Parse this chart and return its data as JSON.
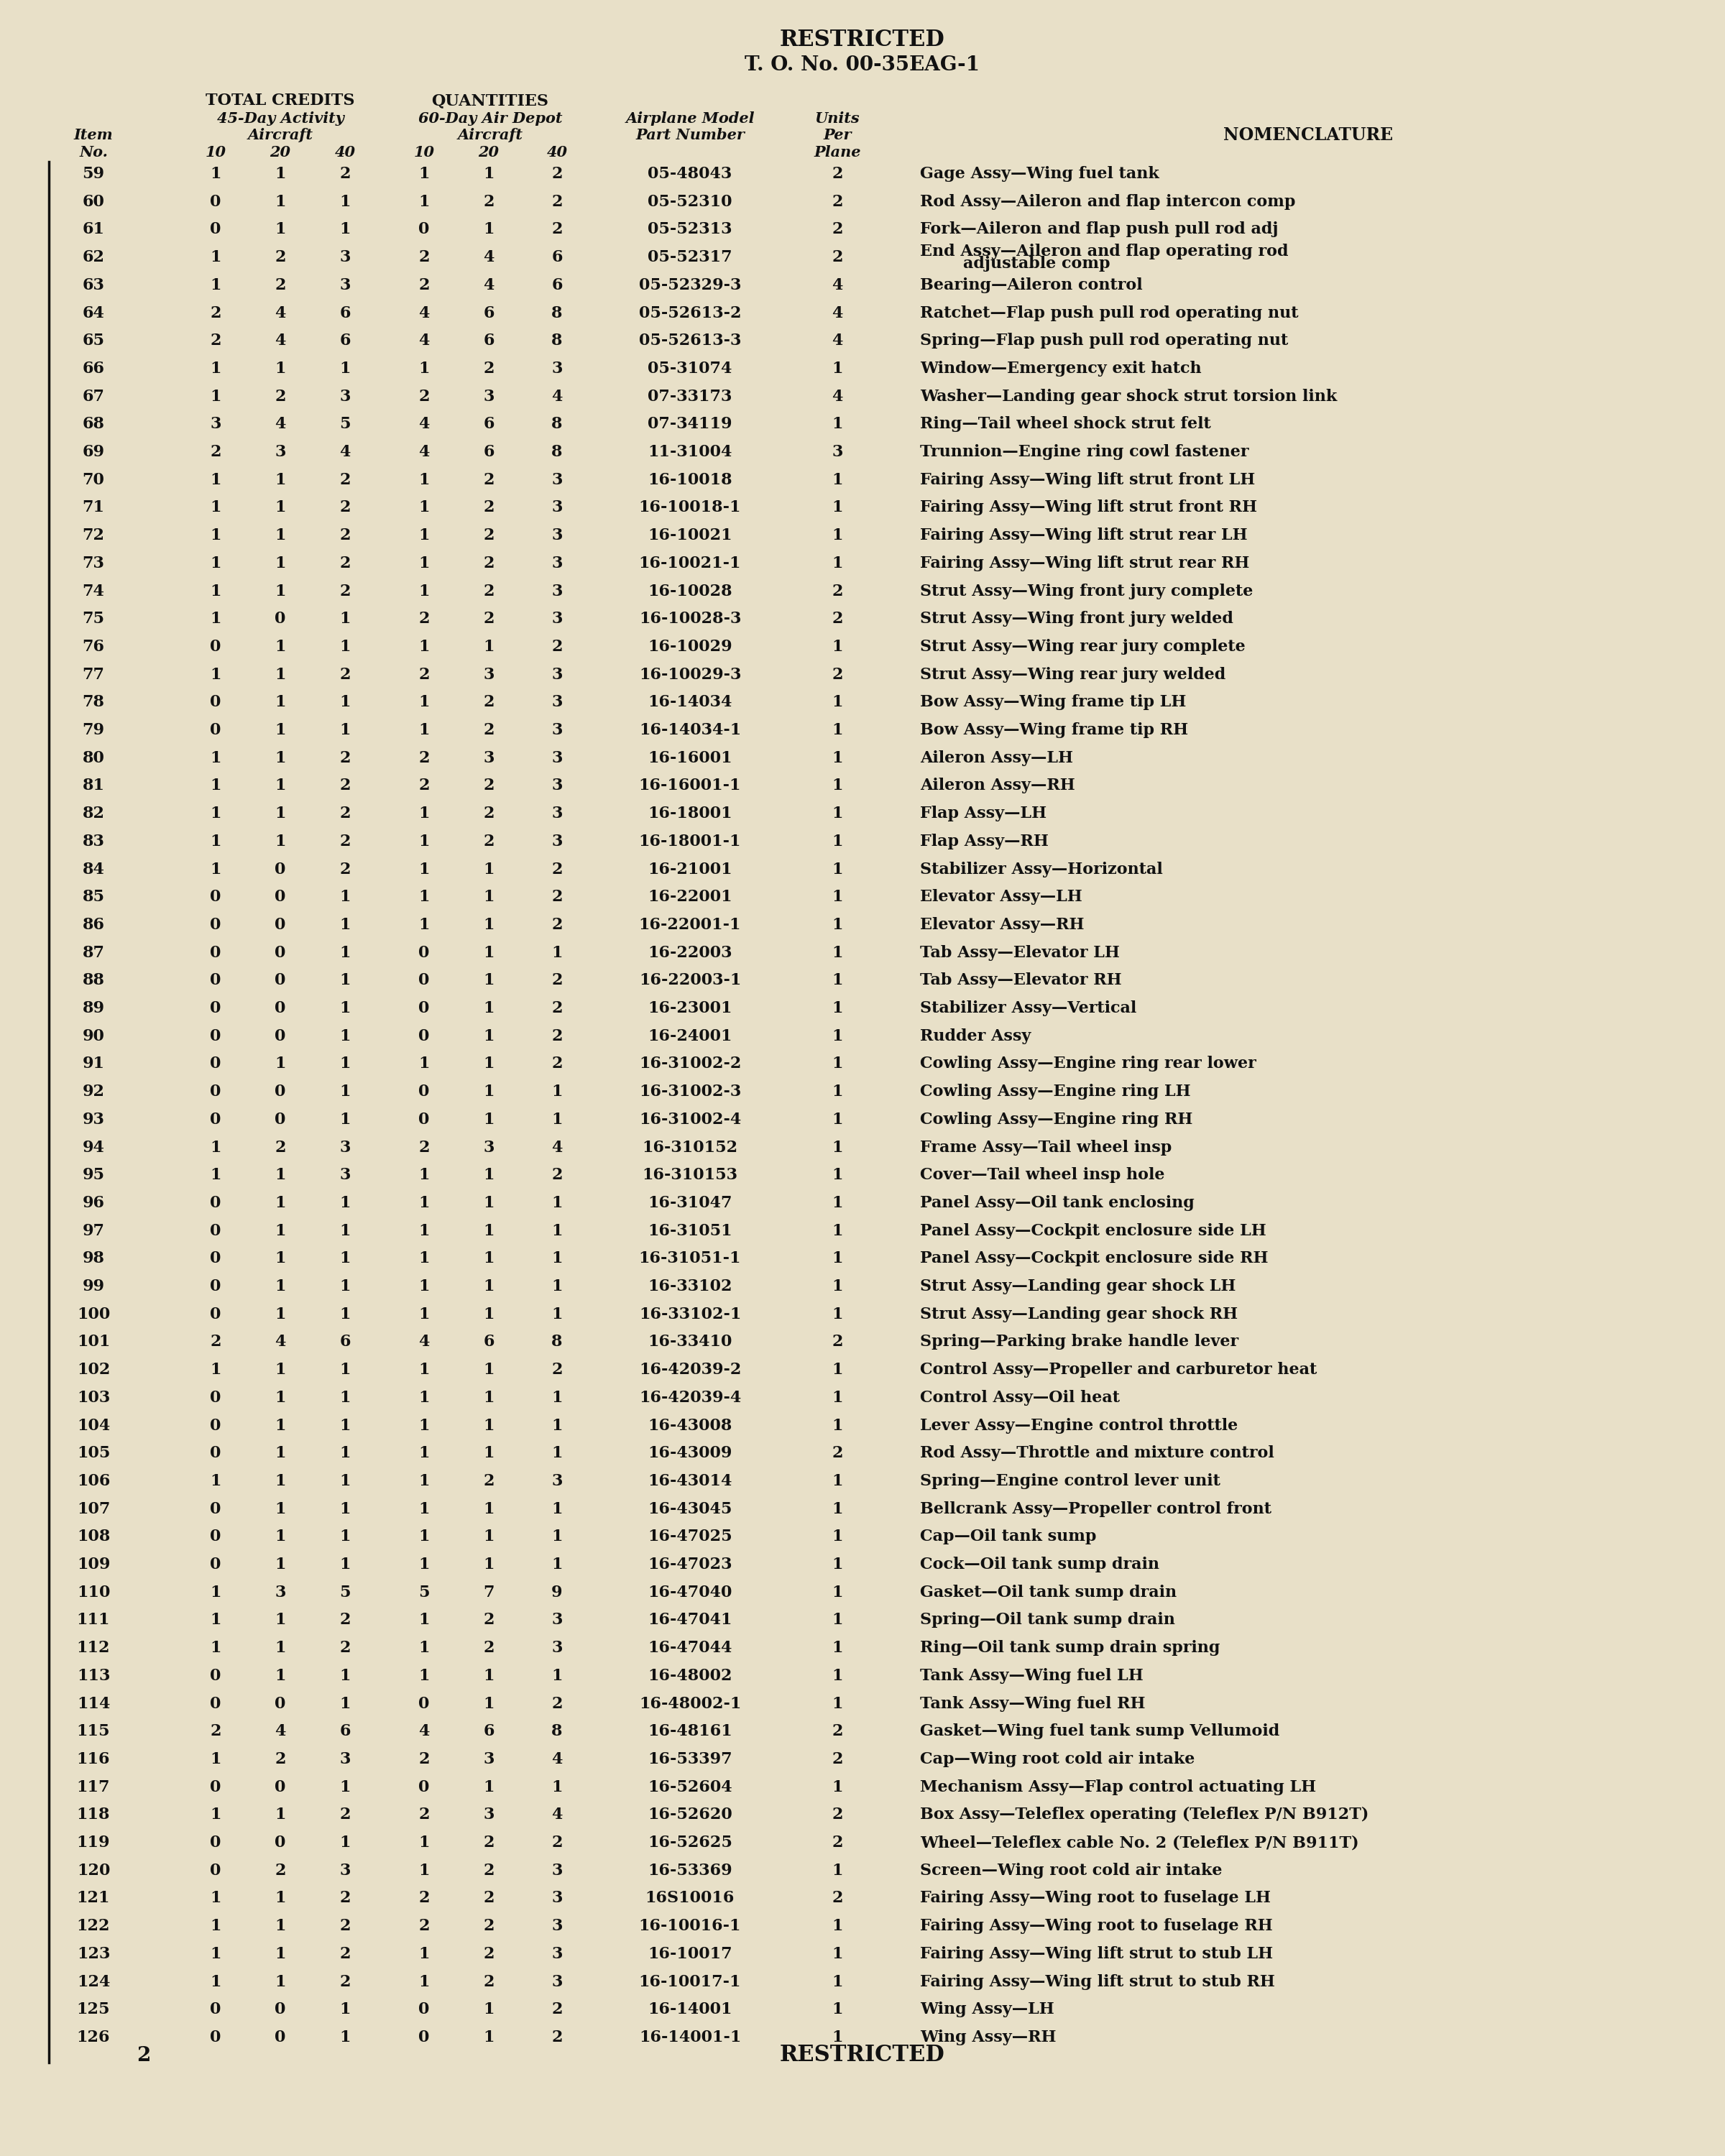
{
  "bg_color": "#e8e0c8",
  "text_color": "#111111",
  "header_top": "RESTRICTED",
  "header_sub": "T. O. No. 00-35EAG-1",
  "footer": "RESTRICTED",
  "page_num": "2",
  "rows": [
    {
      "item": "59",
      "c10": "1",
      "c20": "1",
      "c40": "2",
      "d10": "1",
      "d20": "1",
      "d40": "2",
      "part": "05-48043",
      "units": "2",
      "nom": "Gage Assy—Wing fuel tank",
      "nom2": ""
    },
    {
      "item": "60",
      "c10": "0",
      "c20": "1",
      "c40": "1",
      "d10": "1",
      "d20": "2",
      "d40": "2",
      "part": "05-52310",
      "units": "2",
      "nom": "Rod Assy—Aileron and flap intercon comp",
      "nom2": ""
    },
    {
      "item": "61",
      "c10": "0",
      "c20": "1",
      "c40": "1",
      "d10": "0",
      "d20": "1",
      "d40": "2",
      "part": "05-52313",
      "units": "2",
      "nom": "Fork—Aileron and flap push pull rod adj",
      "nom2": ""
    },
    {
      "item": "62",
      "c10": "1",
      "c20": "2",
      "c40": "3",
      "d10": "2",
      "d20": "4",
      "d40": "6",
      "part": "05-52317",
      "units": "2",
      "nom": "End Assy—Aileron and flap operating rod",
      "nom2": "adjustable comp"
    },
    {
      "item": "63",
      "c10": "1",
      "c20": "2",
      "c40": "3",
      "d10": "2",
      "d20": "4",
      "d40": "6",
      "part": "05-52329-3",
      "units": "4",
      "nom": "Bearing—Aileron control",
      "nom2": ""
    },
    {
      "item": "64",
      "c10": "2",
      "c20": "4",
      "c40": "6",
      "d10": "4",
      "d20": "6",
      "d40": "8",
      "part": "05-52613-2",
      "units": "4",
      "nom": "Ratchet—Flap push pull rod operating nut",
      "nom2": ""
    },
    {
      "item": "65",
      "c10": "2",
      "c20": "4",
      "c40": "6",
      "d10": "4",
      "d20": "6",
      "d40": "8",
      "part": "05-52613-3",
      "units": "4",
      "nom": "Spring—Flap push pull rod operating nut",
      "nom2": ""
    },
    {
      "item": "66",
      "c10": "1",
      "c20": "1",
      "c40": "1",
      "d10": "1",
      "d20": "2",
      "d40": "3",
      "part": "05-31074",
      "units": "1",
      "nom": "Window—Emergency exit hatch",
      "nom2": ""
    },
    {
      "item": "67",
      "c10": "1",
      "c20": "2",
      "c40": "3",
      "d10": "2",
      "d20": "3",
      "d40": "4",
      "part": "07-33173",
      "units": "4",
      "nom": "Washer—Landing gear shock strut torsion link",
      "nom2": ""
    },
    {
      "item": "68",
      "c10": "3",
      "c20": "4",
      "c40": "5",
      "d10": "4",
      "d20": "6",
      "d40": "8",
      "part": "07-34119",
      "units": "1",
      "nom": "Ring—Tail wheel shock strut felt",
      "nom2": ""
    },
    {
      "item": "69",
      "c10": "2",
      "c20": "3",
      "c40": "4",
      "d10": "4",
      "d20": "6",
      "d40": "8",
      "part": "11-31004",
      "units": "3",
      "nom": "Trunnion—Engine ring cowl fastener",
      "nom2": ""
    },
    {
      "item": "70",
      "c10": "1",
      "c20": "1",
      "c40": "2",
      "d10": "1",
      "d20": "2",
      "d40": "3",
      "part": "16-10018",
      "units": "1",
      "nom": "Fairing Assy—Wing lift strut front LH",
      "nom2": ""
    },
    {
      "item": "71",
      "c10": "1",
      "c20": "1",
      "c40": "2",
      "d10": "1",
      "d20": "2",
      "d40": "3",
      "part": "16-10018-1",
      "units": "1",
      "nom": "Fairing Assy—Wing lift strut front RH",
      "nom2": ""
    },
    {
      "item": "72",
      "c10": "1",
      "c20": "1",
      "c40": "2",
      "d10": "1",
      "d20": "2",
      "d40": "3",
      "part": "16-10021",
      "units": "1",
      "nom": "Fairing Assy—Wing lift strut rear LH",
      "nom2": ""
    },
    {
      "item": "73",
      "c10": "1",
      "c20": "1",
      "c40": "2",
      "d10": "1",
      "d20": "2",
      "d40": "3",
      "part": "16-10021-1",
      "units": "1",
      "nom": "Fairing Assy—Wing lift strut rear RH",
      "nom2": ""
    },
    {
      "item": "74",
      "c10": "1",
      "c20": "1",
      "c40": "2",
      "d10": "1",
      "d20": "2",
      "d40": "3",
      "part": "16-10028",
      "units": "2",
      "nom": "Strut Assy—Wing front jury complete",
      "nom2": ""
    },
    {
      "item": "75",
      "c10": "1",
      "c20": "0",
      "c40": "1",
      "d10": "2",
      "d20": "2",
      "d40": "3",
      "part": "16-10028-3",
      "units": "2",
      "nom": "Strut Assy—Wing front jury welded",
      "nom2": ""
    },
    {
      "item": "76",
      "c10": "0",
      "c20": "1",
      "c40": "1",
      "d10": "1",
      "d20": "1",
      "d40": "2",
      "part": "16-10029",
      "units": "1",
      "nom": "Strut Assy—Wing rear jury complete",
      "nom2": ""
    },
    {
      "item": "77",
      "c10": "1",
      "c20": "1",
      "c40": "2",
      "d10": "2",
      "d20": "3",
      "d40": "3",
      "part": "16-10029-3",
      "units": "2",
      "nom": "Strut Assy—Wing rear jury welded",
      "nom2": ""
    },
    {
      "item": "78",
      "c10": "0",
      "c20": "1",
      "c40": "1",
      "d10": "1",
      "d20": "2",
      "d40": "3",
      "part": "16-14034",
      "units": "1",
      "nom": "Bow Assy—Wing frame tip LH",
      "nom2": ""
    },
    {
      "item": "79",
      "c10": "0",
      "c20": "1",
      "c40": "1",
      "d10": "1",
      "d20": "2",
      "d40": "3",
      "part": "16-14034-1",
      "units": "1",
      "nom": "Bow Assy—Wing frame tip RH",
      "nom2": ""
    },
    {
      "item": "80",
      "c10": "1",
      "c20": "1",
      "c40": "2",
      "d10": "2",
      "d20": "3",
      "d40": "3",
      "part": "16-16001",
      "units": "1",
      "nom": "Aileron Assy—LH",
      "nom2": ""
    },
    {
      "item": "81",
      "c10": "1",
      "c20": "1",
      "c40": "2",
      "d10": "2",
      "d20": "2",
      "d40": "3",
      "part": "16-16001-1",
      "units": "1",
      "nom": "Aileron Assy—RH",
      "nom2": ""
    },
    {
      "item": "82",
      "c10": "1",
      "c20": "1",
      "c40": "2",
      "d10": "1",
      "d20": "2",
      "d40": "3",
      "part": "16-18001",
      "units": "1",
      "nom": "Flap Assy—LH",
      "nom2": ""
    },
    {
      "item": "83",
      "c10": "1",
      "c20": "1",
      "c40": "2",
      "d10": "1",
      "d20": "2",
      "d40": "3",
      "part": "16-18001-1",
      "units": "1",
      "nom": "Flap Assy—RH",
      "nom2": ""
    },
    {
      "item": "84",
      "c10": "1",
      "c20": "0",
      "c40": "2",
      "d10": "1",
      "d20": "1",
      "d40": "2",
      "part": "16-21001",
      "units": "1",
      "nom": "Stabilizer Assy—Horizontal",
      "nom2": ""
    },
    {
      "item": "85",
      "c10": "0",
      "c20": "0",
      "c40": "1",
      "d10": "1",
      "d20": "1",
      "d40": "2",
      "part": "16-22001",
      "units": "1",
      "nom": "Elevator Assy—LH",
      "nom2": ""
    },
    {
      "item": "86",
      "c10": "0",
      "c20": "0",
      "c40": "1",
      "d10": "1",
      "d20": "1",
      "d40": "2",
      "part": "16-22001-1",
      "units": "1",
      "nom": "Elevator Assy—RH",
      "nom2": ""
    },
    {
      "item": "87",
      "c10": "0",
      "c20": "0",
      "c40": "1",
      "d10": "0",
      "d20": "1",
      "d40": "1",
      "part": "16-22003",
      "units": "1",
      "nom": "Tab Assy—Elevator LH",
      "nom2": ""
    },
    {
      "item": "88",
      "c10": "0",
      "c20": "0",
      "c40": "1",
      "d10": "0",
      "d20": "1",
      "d40": "2",
      "part": "16-22003-1",
      "units": "1",
      "nom": "Tab Assy—Elevator RH",
      "nom2": ""
    },
    {
      "item": "89",
      "c10": "0",
      "c20": "0",
      "c40": "1",
      "d10": "0",
      "d20": "1",
      "d40": "2",
      "part": "16-23001",
      "units": "1",
      "nom": "Stabilizer Assy—Vertical",
      "nom2": ""
    },
    {
      "item": "90",
      "c10": "0",
      "c20": "0",
      "c40": "1",
      "d10": "0",
      "d20": "1",
      "d40": "2",
      "part": "16-24001",
      "units": "1",
      "nom": "Rudder Assy",
      "nom2": ""
    },
    {
      "item": "91",
      "c10": "0",
      "c20": "1",
      "c40": "1",
      "d10": "1",
      "d20": "1",
      "d40": "2",
      "part": "16-31002-2",
      "units": "1",
      "nom": "Cowling Assy—Engine ring rear lower",
      "nom2": ""
    },
    {
      "item": "92",
      "c10": "0",
      "c20": "0",
      "c40": "1",
      "d10": "0",
      "d20": "1",
      "d40": "1",
      "part": "16-31002-3",
      "units": "1",
      "nom": "Cowling Assy—Engine ring LH",
      "nom2": ""
    },
    {
      "item": "93",
      "c10": "0",
      "c20": "0",
      "c40": "1",
      "d10": "0",
      "d20": "1",
      "d40": "1",
      "part": "16-31002-4",
      "units": "1",
      "nom": "Cowling Assy—Engine ring RH",
      "nom2": ""
    },
    {
      "item": "94",
      "c10": "1",
      "c20": "2",
      "c40": "3",
      "d10": "2",
      "d20": "3",
      "d40": "4",
      "part": "16-310152",
      "units": "1",
      "nom": "Frame Assy—Tail wheel insp",
      "nom2": ""
    },
    {
      "item": "95",
      "c10": "1",
      "c20": "1",
      "c40": "3",
      "d10": "1",
      "d20": "1",
      "d40": "2",
      "part": "16-310153",
      "units": "1",
      "nom": "Cover—Tail wheel insp hole",
      "nom2": ""
    },
    {
      "item": "96",
      "c10": "0",
      "c20": "1",
      "c40": "1",
      "d10": "1",
      "d20": "1",
      "d40": "1",
      "part": "16-31047",
      "units": "1",
      "nom": "Panel Assy—Oil tank enclosing",
      "nom2": ""
    },
    {
      "item": "97",
      "c10": "0",
      "c20": "1",
      "c40": "1",
      "d10": "1",
      "d20": "1",
      "d40": "1",
      "part": "16-31051",
      "units": "1",
      "nom": "Panel Assy—Cockpit enclosure side LH",
      "nom2": ""
    },
    {
      "item": "98",
      "c10": "0",
      "c20": "1",
      "c40": "1",
      "d10": "1",
      "d20": "1",
      "d40": "1",
      "part": "16-31051-1",
      "units": "1",
      "nom": "Panel Assy—Cockpit enclosure side RH",
      "nom2": ""
    },
    {
      "item": "99",
      "c10": "0",
      "c20": "1",
      "c40": "1",
      "d10": "1",
      "d20": "1",
      "d40": "1",
      "part": "16-33102",
      "units": "1",
      "nom": "Strut Assy—Landing gear shock LH",
      "nom2": ""
    },
    {
      "item": "100",
      "c10": "0",
      "c20": "1",
      "c40": "1",
      "d10": "1",
      "d20": "1",
      "d40": "1",
      "part": "16-33102-1",
      "units": "1",
      "nom": "Strut Assy—Landing gear shock RH",
      "nom2": ""
    },
    {
      "item": "101",
      "c10": "2",
      "c20": "4",
      "c40": "6",
      "d10": "4",
      "d20": "6",
      "d40": "8",
      "part": "16-33410",
      "units": "2",
      "nom": "Spring—Parking brake handle lever",
      "nom2": ""
    },
    {
      "item": "102",
      "c10": "1",
      "c20": "1",
      "c40": "1",
      "d10": "1",
      "d20": "1",
      "d40": "2",
      "part": "16-42039-2",
      "units": "1",
      "nom": "Control Assy—Propeller and carburetor heat",
      "nom2": ""
    },
    {
      "item": "103",
      "c10": "0",
      "c20": "1",
      "c40": "1",
      "d10": "1",
      "d20": "1",
      "d40": "1",
      "part": "16-42039-4",
      "units": "1",
      "nom": "Control Assy—Oil heat",
      "nom2": ""
    },
    {
      "item": "104",
      "c10": "0",
      "c20": "1",
      "c40": "1",
      "d10": "1",
      "d20": "1",
      "d40": "1",
      "part": "16-43008",
      "units": "1",
      "nom": "Lever Assy—Engine control throttle",
      "nom2": ""
    },
    {
      "item": "105",
      "c10": "0",
      "c20": "1",
      "c40": "1",
      "d10": "1",
      "d20": "1",
      "d40": "1",
      "part": "16-43009",
      "units": "2",
      "nom": "Rod Assy—Throttle and mixture control",
      "nom2": ""
    },
    {
      "item": "106",
      "c10": "1",
      "c20": "1",
      "c40": "1",
      "d10": "1",
      "d20": "2",
      "d40": "3",
      "part": "16-43014",
      "units": "1",
      "nom": "Spring—Engine control lever unit",
      "nom2": ""
    },
    {
      "item": "107",
      "c10": "0",
      "c20": "1",
      "c40": "1",
      "d10": "1",
      "d20": "1",
      "d40": "1",
      "part": "16-43045",
      "units": "1",
      "nom": "Bellcrank Assy—Propeller control front",
      "nom2": ""
    },
    {
      "item": "108",
      "c10": "0",
      "c20": "1",
      "c40": "1",
      "d10": "1",
      "d20": "1",
      "d40": "1",
      "part": "16-47025",
      "units": "1",
      "nom": "Cap—Oil tank sump",
      "nom2": ""
    },
    {
      "item": "109",
      "c10": "0",
      "c20": "1",
      "c40": "1",
      "d10": "1",
      "d20": "1",
      "d40": "1",
      "part": "16-47023",
      "units": "1",
      "nom": "Cock—Oil tank sump drain",
      "nom2": ""
    },
    {
      "item": "110",
      "c10": "1",
      "c20": "3",
      "c40": "5",
      "d10": "5",
      "d20": "7",
      "d40": "9",
      "part": "16-47040",
      "units": "1",
      "nom": "Gasket—Oil tank sump drain",
      "nom2": ""
    },
    {
      "item": "111",
      "c10": "1",
      "c20": "1",
      "c40": "2",
      "d10": "1",
      "d20": "2",
      "d40": "3",
      "part": "16-47041",
      "units": "1",
      "nom": "Spring—Oil tank sump drain",
      "nom2": ""
    },
    {
      "item": "112",
      "c10": "1",
      "c20": "1",
      "c40": "2",
      "d10": "1",
      "d20": "2",
      "d40": "3",
      "part": "16-47044",
      "units": "1",
      "nom": "Ring—Oil tank sump drain spring",
      "nom2": ""
    },
    {
      "item": "113",
      "c10": "0",
      "c20": "1",
      "c40": "1",
      "d10": "1",
      "d20": "1",
      "d40": "1",
      "part": "16-48002",
      "units": "1",
      "nom": "Tank Assy—Wing fuel LH",
      "nom2": ""
    },
    {
      "item": "114",
      "c10": "0",
      "c20": "0",
      "c40": "1",
      "d10": "0",
      "d20": "1",
      "d40": "2",
      "part": "16-48002-1",
      "units": "1",
      "nom": "Tank Assy—Wing fuel RH",
      "nom2": ""
    },
    {
      "item": "115",
      "c10": "2",
      "c20": "4",
      "c40": "6",
      "d10": "4",
      "d20": "6",
      "d40": "8",
      "part": "16-48161",
      "units": "2",
      "nom": "Gasket—Wing fuel tank sump Vellumoid",
      "nom2": ""
    },
    {
      "item": "116",
      "c10": "1",
      "c20": "2",
      "c40": "3",
      "d10": "2",
      "d20": "3",
      "d40": "4",
      "part": "16-53397",
      "units": "2",
      "nom": "Cap—Wing root cold air intake",
      "nom2": ""
    },
    {
      "item": "117",
      "c10": "0",
      "c20": "0",
      "c40": "1",
      "d10": "0",
      "d20": "1",
      "d40": "1",
      "part": "16-52604",
      "units": "1",
      "nom": "Mechanism Assy—Flap control actuating LH",
      "nom2": ""
    },
    {
      "item": "118",
      "c10": "1",
      "c20": "1",
      "c40": "2",
      "d10": "2",
      "d20": "3",
      "d40": "4",
      "part": "16-52620",
      "units": "2",
      "nom": "Box Assy—Teleflex operating (Teleflex P/N B912T)",
      "nom2": ""
    },
    {
      "item": "119",
      "c10": "0",
      "c20": "0",
      "c40": "1",
      "d10": "1",
      "d20": "2",
      "d40": "2",
      "part": "16-52625",
      "units": "2",
      "nom": "Wheel—Teleflex cable No. 2 (Teleflex P/N B911T)",
      "nom2": ""
    },
    {
      "item": "120",
      "c10": "0",
      "c20": "2",
      "c40": "3",
      "d10": "1",
      "d20": "2",
      "d40": "3",
      "part": "16-53369",
      "units": "1",
      "nom": "Screen—Wing root cold air intake",
      "nom2": ""
    },
    {
      "item": "121",
      "c10": "1",
      "c20": "1",
      "c40": "2",
      "d10": "2",
      "d20": "2",
      "d40": "3",
      "part": "16S10016",
      "units": "2",
      "nom": "Fairing Assy—Wing root to fuselage LH",
      "nom2": ""
    },
    {
      "item": "122",
      "c10": "1",
      "c20": "1",
      "c40": "2",
      "d10": "2",
      "d20": "2",
      "d40": "3",
      "part": "16-10016-1",
      "units": "1",
      "nom": "Fairing Assy—Wing root to fuselage RH",
      "nom2": ""
    },
    {
      "item": "123",
      "c10": "1",
      "c20": "1",
      "c40": "2",
      "d10": "1",
      "d20": "2",
      "d40": "3",
      "part": "16-10017",
      "units": "1",
      "nom": "Fairing Assy—Wing lift strut to stub LH",
      "nom2": ""
    },
    {
      "item": "124",
      "c10": "1",
      "c20": "1",
      "c40": "2",
      "d10": "1",
      "d20": "2",
      "d40": "3",
      "part": "16-10017-1",
      "units": "1",
      "nom": "Fairing Assy—Wing lift strut to stub RH",
      "nom2": ""
    },
    {
      "item": "125",
      "c10": "0",
      "c20": "0",
      "c40": "1",
      "d10": "0",
      "d20": "1",
      "d40": "2",
      "part": "16-14001",
      "units": "1",
      "nom": "Wing Assy—LH",
      "nom2": ""
    },
    {
      "item": "126",
      "c10": "0",
      "c20": "0",
      "c40": "1",
      "d10": "0",
      "d20": "1",
      "d40": "2",
      "part": "16-14001-1",
      "units": "1",
      "nom": "Wing Assy—RH",
      "nom2": ""
    }
  ]
}
